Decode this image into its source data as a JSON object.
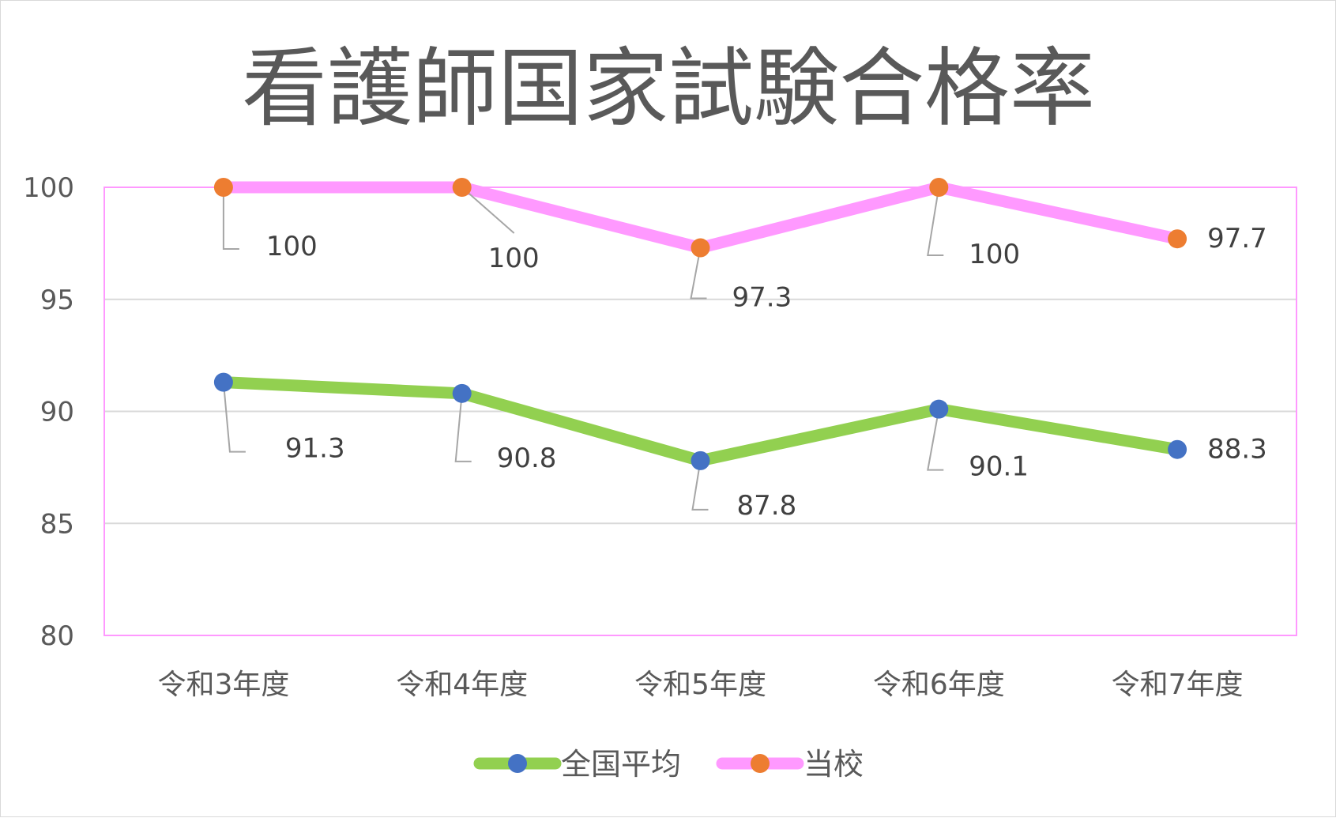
{
  "chart_data": {
    "type": "line",
    "title": "看護師国家試験合格率",
    "categories": [
      "令和3年度",
      "令和4年度",
      "令和5年度",
      "令和6年度",
      "令和7年度"
    ],
    "series": [
      {
        "name": "全国平均",
        "values": [
          91.3,
          90.8,
          87.8,
          90.1,
          88.3
        ],
        "labels": [
          "91.3",
          "90.8",
          "87.8",
          "90.1",
          "88.3"
        ],
        "line_color": "#92d050",
        "marker_color": "#4472c4"
      },
      {
        "name": "当校",
        "values": [
          100,
          100,
          97.3,
          100,
          97.7
        ],
        "labels": [
          "100",
          "100",
          "97.3",
          "100",
          "97.7"
        ],
        "line_color": "#ff99ff",
        "marker_color": "#ed7d31"
      }
    ],
    "ylim": [
      80,
      100
    ],
    "yticks": [
      80,
      85,
      90,
      95,
      100
    ],
    "ytick_labels": [
      "80",
      "85",
      "90",
      "95",
      "100"
    ],
    "grid": true,
    "legend_position": "bottom",
    "plot_border_color": "#ff99ff",
    "grid_color": "#d9d9d9",
    "leader_color": "#a6a6a6"
  }
}
